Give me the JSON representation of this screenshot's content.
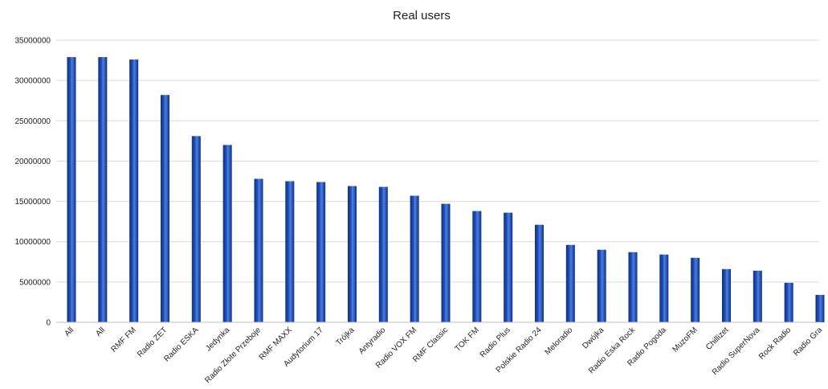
{
  "chart_data": {
    "type": "bar",
    "title": "Real users",
    "xlabel": "",
    "ylabel": "",
    "ylim": [
      0,
      35000000
    ],
    "yticks": [
      0,
      5000000,
      10000000,
      15000000,
      20000000,
      25000000,
      30000000,
      35000000
    ],
    "ytick_labels": [
      "0",
      "5000000",
      "10000000",
      "15000000",
      "20000000",
      "25000000",
      "30000000",
      "35000000"
    ],
    "grid": true,
    "legend": "none",
    "bar_color": "#1f4fbf",
    "categories": [
      "All",
      "All",
      "RMF FM",
      "Radio ZET",
      "Radio ESKA",
      "Jedynka",
      "Radio Złote Przeboje",
      "RMF MAXX",
      "Audytorium 17",
      "Trójka",
      "Antyradio",
      "Radio VOX FM",
      "RMF Classic",
      "TOK FM",
      "Radio Plus",
      "Polskie Radio 24",
      "Meloradio",
      "Dwójka",
      "Radio Eska Rock",
      "Radio Pogoda",
      "MuzoFM",
      "Chillizet",
      "Radio SuperNova",
      "Rock Radio",
      "Radio Gra"
    ],
    "values": [
      32900000,
      32900000,
      32600000,
      28200000,
      23100000,
      22000000,
      17800000,
      17500000,
      17400000,
      16900000,
      16800000,
      15700000,
      14700000,
      13800000,
      13600000,
      12100000,
      9600000,
      9000000,
      8700000,
      8400000,
      8000000,
      6600000,
      6400000,
      4900000,
      3400000
    ]
  }
}
